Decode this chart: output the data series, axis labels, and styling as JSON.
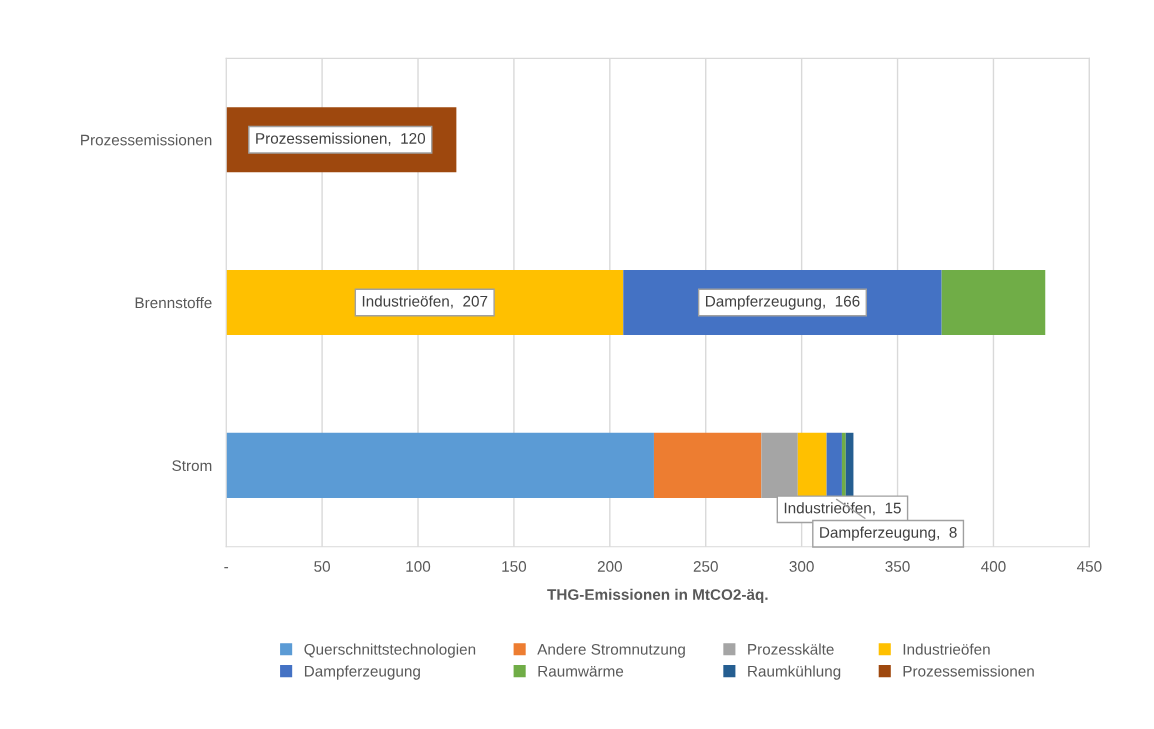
{
  "chart_data": {
    "type": "bar",
    "orientation": "horizontal",
    "stacked": true,
    "categories": [
      "Prozessemissionen",
      "Brennstoffe",
      "Strom"
    ],
    "xlabel": "THG-Emissionen in MtCO2-äq.",
    "xlim": [
      0,
      450
    ],
    "xticks": [
      {
        "value": 0,
        "label": "-"
      },
      50,
      100,
      150,
      200,
      250,
      300,
      350,
      400,
      450
    ],
    "grid": "x",
    "legend": "bottom",
    "series": [
      {
        "name": "Querschnittstechnologien",
        "color": "#5b9bd5",
        "values": [
          null,
          null,
          223
        ]
      },
      {
        "name": "Andere Stromnutzung",
        "color": "#ed7d31",
        "values": [
          null,
          null,
          56
        ]
      },
      {
        "name": "Prozesskälte",
        "color": "#a5a5a5",
        "values": [
          null,
          null,
          19
        ]
      },
      {
        "name": "Industrieöfen",
        "color": "#ffc000",
        "values": [
          null,
          207,
          15
        ],
        "value_labels": [
          null,
          "Industrieöfen,  207",
          "Industrieöfen,  15"
        ]
      },
      {
        "name": "Dampferzeugung",
        "color": "#4472c4",
        "values": [
          null,
          166,
          8
        ],
        "value_labels": [
          null,
          "Dampferzeugung,  166",
          "Dampferzeugung,  8"
        ]
      },
      {
        "name": "Raumwärme",
        "color": "#70ad47",
        "values": [
          null,
          54,
          2
        ]
      },
      {
        "name": "Raumkühlung",
        "color": "#255e91",
        "values": [
          null,
          null,
          4
        ]
      },
      {
        "name": "Prozessemissionen",
        "color": "#9e480e",
        "values": [
          120,
          null,
          null
        ],
        "value_labels": [
          "Prozessemissionen,  120",
          null,
          null
        ]
      }
    ]
  }
}
